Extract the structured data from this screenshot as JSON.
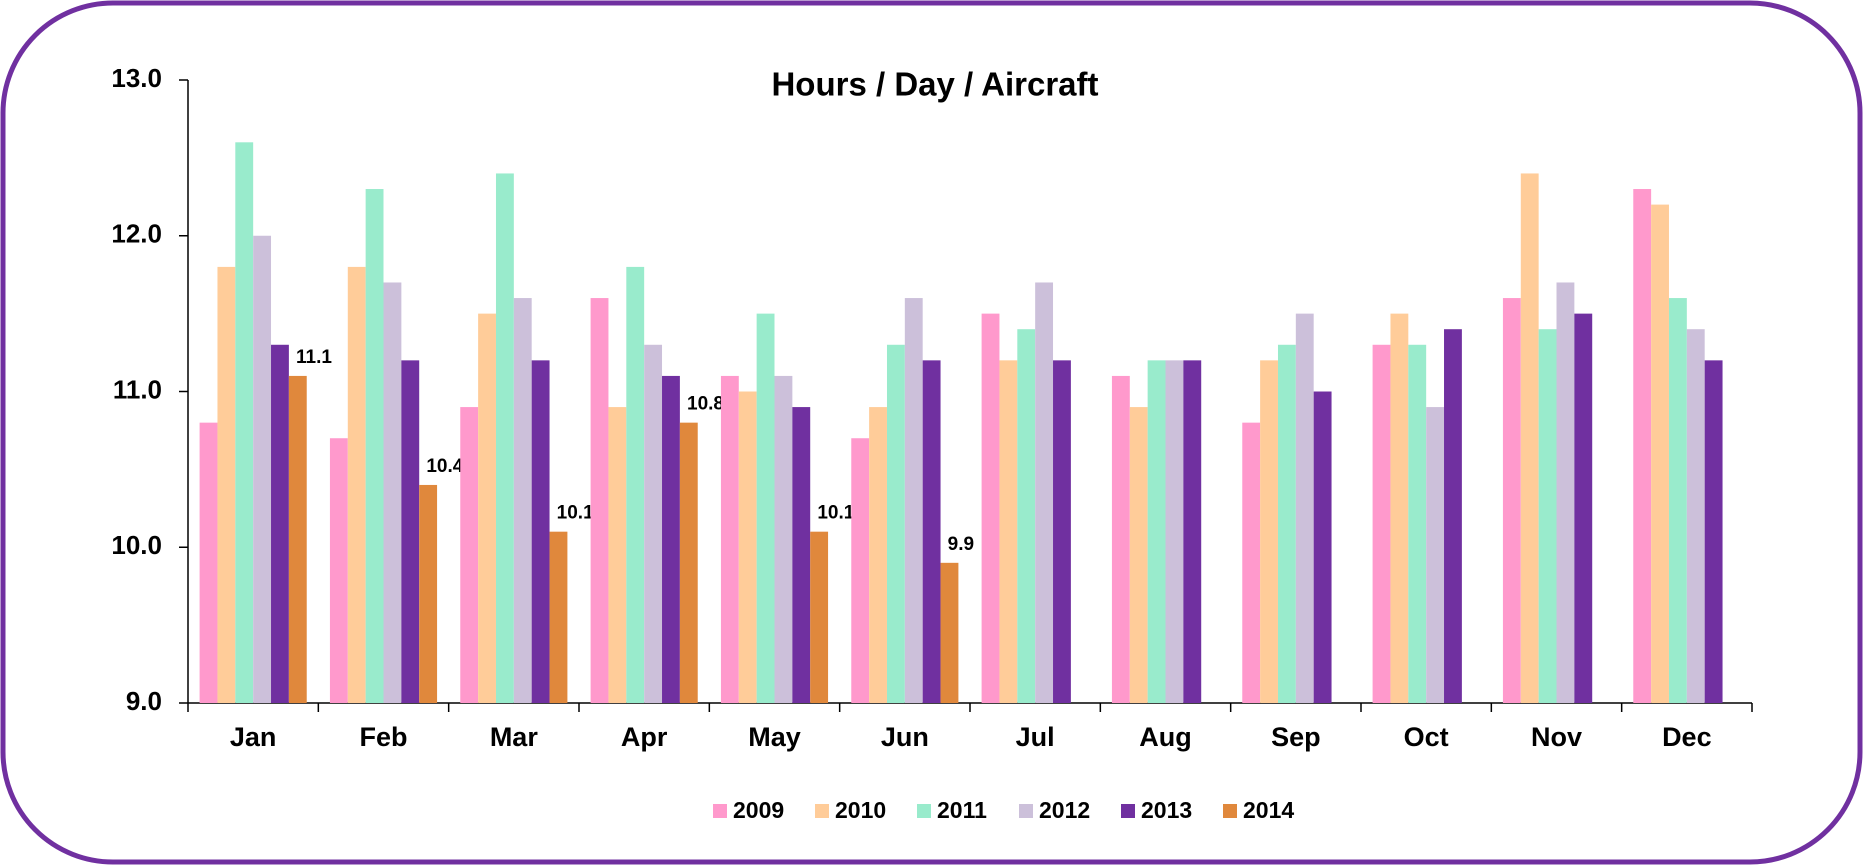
{
  "chart_data": {
    "type": "bar",
    "title": "Hours / Day / Aircraft",
    "categories": [
      "Jan",
      "Feb",
      "Mar",
      "Apr",
      "May",
      "Jun",
      "Jul",
      "Aug",
      "Sep",
      "Oct",
      "Nov",
      "Dec"
    ],
    "series": [
      {
        "name": "2009",
        "color": "#ff99cc",
        "values": [
          10.8,
          10.7,
          10.9,
          11.6,
          11.1,
          10.7,
          11.5,
          11.1,
          10.8,
          11.3,
          11.6,
          12.3
        ]
      },
      {
        "name": "2010",
        "color": "#ffcc99",
        "values": [
          11.8,
          11.8,
          11.5,
          10.9,
          11.0,
          10.9,
          11.2,
          10.9,
          11.2,
          11.5,
          12.4,
          12.2
        ]
      },
      {
        "name": "2011",
        "color": "#99ebcc",
        "values": [
          12.6,
          12.3,
          12.4,
          11.8,
          11.5,
          11.3,
          11.4,
          11.2,
          11.3,
          11.3,
          11.4,
          11.6
        ]
      },
      {
        "name": "2012",
        "color": "#ccc0da",
        "values": [
          12.0,
          11.7,
          11.6,
          11.3,
          11.1,
          11.6,
          11.7,
          11.2,
          11.5,
          10.9,
          11.7,
          11.4
        ]
      },
      {
        "name": "2013",
        "color": "#7030a0",
        "values": [
          11.3,
          11.2,
          11.2,
          11.1,
          10.9,
          11.2,
          11.2,
          11.2,
          11.0,
          11.4,
          11.5,
          11.2
        ]
      },
      {
        "name": "2014",
        "color": "#e0883c",
        "data_labels": true,
        "values": [
          11.1,
          10.4,
          10.1,
          10.8,
          10.1,
          9.9,
          null,
          null,
          null,
          null,
          null,
          null
        ]
      }
    ],
    "ylim": [
      9,
      13
    ],
    "yticks": [
      {
        "value": 9,
        "label": "9.0"
      },
      {
        "value": 10,
        "label": "10.0"
      },
      {
        "value": 11,
        "label": "11.0"
      },
      {
        "value": 12,
        "label": "12.0"
      },
      {
        "value": 13,
        "label": "13.0"
      }
    ],
    "legend": "bottom"
  }
}
